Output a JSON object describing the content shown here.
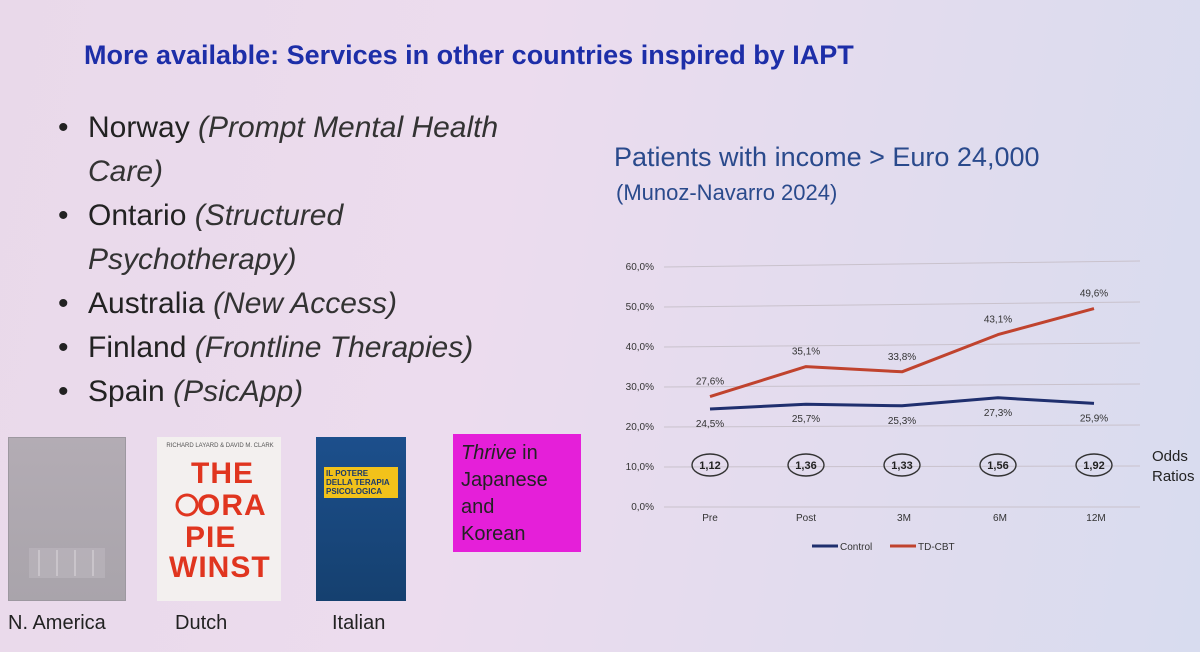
{
  "slide": {
    "title": "More available: Services in other countries inspired by IAPT",
    "bullets": [
      {
        "country": "Norway",
        "service": "(Prompt Mental Health Care)"
      },
      {
        "country": "Ontario",
        "service": "(Structured Psychotherapy)"
      },
      {
        "country": "Australia",
        "service": "(New Access)"
      },
      {
        "country": "Finland",
        "service": "(Frontline Therapies)"
      },
      {
        "country": "Spain",
        "service": "(PsicApp)"
      }
    ],
    "books": {
      "na_caption": "N. America",
      "nl_caption": "Dutch",
      "it_caption": "Italian",
      "nl_cover_words": [
        "THE",
        "ORA",
        "PIE",
        "WINST"
      ],
      "nl_authors": "RICHARD LAYARD & DAVID M. CLARK",
      "it_cover_title": "IL POTERE DELLA TERAPIA PSICOLOGICA",
      "note_italic": "Thrive",
      "note_rest_1": " in",
      "note_rest_2": "Japanese",
      "note_rest_3": "and",
      "note_rest_4": "Korean"
    },
    "bullet_glyph": "•"
  },
  "chart_data": {
    "type": "line",
    "title": "Patients with income > Euro 24,000",
    "subtitle": "(Munoz-Navarro 2024)",
    "categories": [
      "Pre",
      "Post",
      "3M",
      "6M",
      "12M"
    ],
    "series": [
      {
        "name": "Control",
        "values": [
          24.5,
          25.7,
          25.3,
          27.3,
          25.9
        ],
        "labels": [
          "24,5%",
          "25,7%",
          "25,3%",
          "27,3%",
          "25,9%"
        ],
        "color": "#1f2f6e"
      },
      {
        "name": "TD-CBT",
        "values": [
          27.6,
          35.1,
          33.8,
          43.1,
          49.6
        ],
        "labels": [
          "27,6%",
          "35,1%",
          "33,8%",
          "43,1%",
          "49,6%"
        ],
        "color": "#c0432e"
      }
    ],
    "odds_ratios": [
      "1,12",
      "1,36",
      "1,33",
      "1,56",
      "1,92"
    ],
    "odds_label": [
      "Odds",
      "Ratios"
    ],
    "y_ticks": [
      "0,0%",
      "10,0%",
      "20,0%",
      "30,0%",
      "40,0%",
      "50,0%",
      "60,0%"
    ],
    "ylim": [
      0,
      60
    ],
    "grid": true,
    "legend_position": "bottom"
  }
}
